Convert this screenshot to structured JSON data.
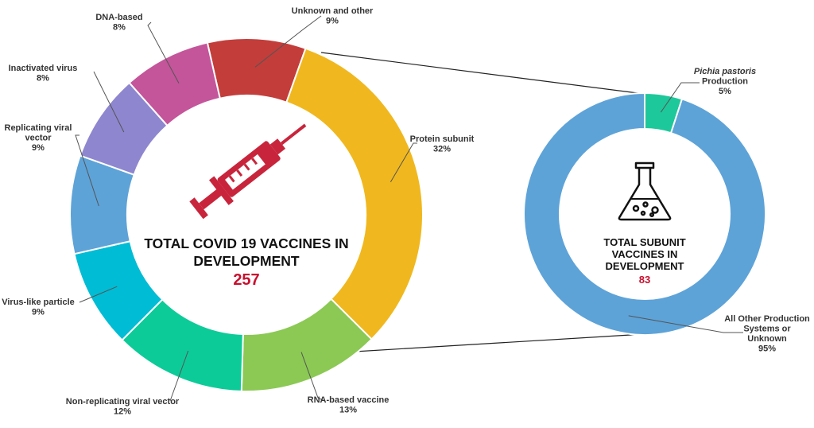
{
  "chart_data": [
    {
      "type": "pie",
      "variant": "donut",
      "center_title_lines": [
        "TOTAL COVID 19 VACCINES IN",
        "DEVELOPMENT"
      ],
      "center_value": "257",
      "center_icon": "syringe-icon",
      "slices": [
        {
          "label_lines": [
            "Unknown and other"
          ],
          "percent_label": "9%",
          "value": 9,
          "color": "#C33D3A"
        },
        {
          "label_lines": [
            "Protein subunit"
          ],
          "percent_label": "32%",
          "value": 32,
          "color": "#F0B81E"
        },
        {
          "label_lines": [
            "RNA-based vaccine"
          ],
          "percent_label": "13%",
          "value": 13,
          "color": "#8BC954"
        },
        {
          "label_lines": [
            "Non-replicating viral vector"
          ],
          "percent_label": "12%",
          "value": 12,
          "color": "#0DCB98"
        },
        {
          "label_lines": [
            "Virus-like particle"
          ],
          "percent_label": "9%",
          "value": 9,
          "color": "#00BCD4"
        },
        {
          "label_lines": [
            "Replicating viral",
            "vector"
          ],
          "percent_label": "9%",
          "value": 9,
          "color": "#5DA3D8"
        },
        {
          "label_lines": [
            "Inactivated virus"
          ],
          "percent_label": "8%",
          "value": 8,
          "color": "#8E86CE"
        },
        {
          "label_lines": [
            "DNA-based"
          ],
          "percent_label": "8%",
          "value": 8,
          "color": "#C4559A"
        }
      ]
    },
    {
      "type": "pie",
      "variant": "donut",
      "center_title_lines": [
        "TOTAL SUBUNIT",
        "VACCINES IN",
        "DEVELOPMENT"
      ],
      "center_value": "83",
      "center_icon": "flask-icon",
      "slices": [
        {
          "label_lines": [
            "Pichia pastoris",
            "Production"
          ],
          "percent_label": "5%",
          "value": 5,
          "color": "#1DC89A"
        },
        {
          "label_lines": [
            "All Other Production",
            "Systems or",
            "Unknown"
          ],
          "percent_label": "95%",
          "value": 95,
          "color": "#5DA3D8"
        }
      ]
    }
  ],
  "colors": {
    "accent_number": "#C8102E",
    "syringe": "#C8253C",
    "connector": "#222222",
    "leader": "#555555"
  }
}
